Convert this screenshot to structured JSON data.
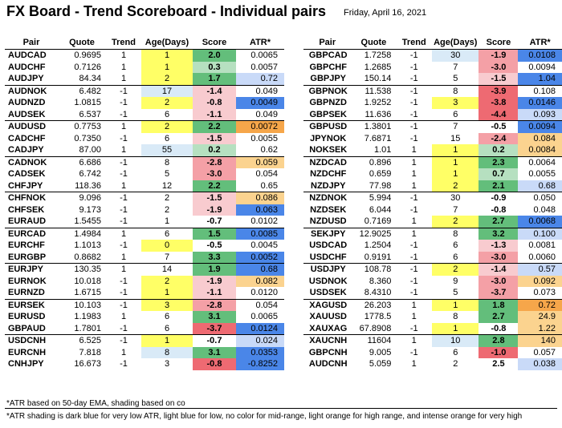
{
  "title": "FX Board - Trend Scoreboard - Individual pairs",
  "date": "Friday, April 16, 2021",
  "headers": [
    "Pair",
    "Quote",
    "Trend",
    "Age(Days)",
    "Score",
    "ATR*"
  ],
  "colors": {
    "age_yellow": "#ffff66",
    "age_lightblue": "#d9eaf7",
    "score_green_strong": "#63be7b",
    "score_green_light": "#b6e0c0",
    "score_red_light": "#f8cbcf",
    "score_red_mid": "#f4a0a6",
    "score_red_strong": "#ee6a72",
    "atr_darkblue": "#4a86e8",
    "atr_lightblue": "#c9daf8",
    "atr_lightorange": "#fbd38f",
    "atr_orange": "#f6a64a"
  },
  "left_rows": [
    [
      "AUDCAD",
      "0.9695",
      "1",
      "1",
      "2.0",
      "0.0065",
      0
    ],
    [
      "AUDCHF",
      "0.7126",
      "1",
      "1",
      "0.3",
      "0.0057",
      0
    ],
    [
      "AUDJPY",
      "84.34",
      "1",
      "2",
      "1.7",
      "0.72",
      0
    ],
    [
      "AUDNOK",
      "6.482",
      "-1",
      "17",
      "-1.4",
      "0.049",
      1
    ],
    [
      "AUDNZD",
      "1.0815",
      "-1",
      "2",
      "-0.8",
      "0.0049",
      0
    ],
    [
      "AUDSEK",
      "6.537",
      "-1",
      "6",
      "-1.1",
      "0.049",
      0
    ],
    [
      "AUDUSD",
      "0.7753",
      "1",
      "2",
      "2.2",
      "0.0072",
      1
    ],
    [
      "CADCHF",
      "0.7350",
      "-1",
      "6",
      "-1.5",
      "0.0055",
      0
    ],
    [
      "CADJPY",
      "87.00",
      "1",
      "55",
      "0.2",
      "0.62",
      0
    ],
    [
      "CADNOK",
      "6.686",
      "-1",
      "8",
      "-2.8",
      "0.059",
      1
    ],
    [
      "CADSEK",
      "6.742",
      "-1",
      "5",
      "-3.0",
      "0.054",
      0
    ],
    [
      "CHFJPY",
      "118.36",
      "1",
      "12",
      "2.2",
      "0.65",
      0
    ],
    [
      "CHFNOK",
      "9.096",
      "-1",
      "2",
      "-1.5",
      "0.086",
      1
    ],
    [
      "CHFSEK",
      "9.173",
      "-1",
      "2",
      "-1.9",
      "0.063",
      0
    ],
    [
      "EURAUD",
      "1.5455",
      "-1",
      "1",
      "-0.7",
      "0.0102",
      0
    ],
    [
      "EURCAD",
      "1.4984",
      "1",
      "6",
      "1.5",
      "0.0085",
      1
    ],
    [
      "EURCHF",
      "1.1013",
      "-1",
      "0",
      "-0.5",
      "0.0045",
      0
    ],
    [
      "EURGBP",
      "0.8682",
      "1",
      "7",
      "3.3",
      "0.0052",
      0
    ],
    [
      "EURJPY",
      "130.35",
      "1",
      "14",
      "1.9",
      "0.68",
      1
    ],
    [
      "EURNOK",
      "10.018",
      "-1",
      "2",
      "-1.9",
      "0.082",
      0
    ],
    [
      "EURNZD",
      "1.6715",
      "-1",
      "1",
      "-1.1",
      "0.0120",
      0
    ],
    [
      "EURSEK",
      "10.103",
      "-1",
      "3",
      "-2.8",
      "0.054",
      1
    ],
    [
      "EURUSD",
      "1.1983",
      "1",
      "6",
      "3.1",
      "0.0065",
      0
    ],
    [
      "GBPAUD",
      "1.7801",
      "-1",
      "6",
      "-3.7",
      "0.0124",
      0
    ],
    [
      "USDCNH",
      "6.525",
      "-1",
      "1",
      "-0.7",
      "0.024",
      1
    ],
    [
      "EURCNH",
      "7.818",
      "1",
      "8",
      "3.1",
      "0.0353",
      0
    ],
    [
      "CNHJPY",
      "16.673",
      "-1",
      "3",
      "-0.8",
      "-0.8252",
      0
    ]
  ],
  "right_rows": [
    [
      "GBPCAD",
      "1.7258",
      "-1",
      "30",
      "-1.9",
      "0.0108",
      0
    ],
    [
      "GBPCHF",
      "1.2685",
      "-1",
      "7",
      "-3.0",
      "0.0094",
      0
    ],
    [
      "GBPJPY",
      "150.14",
      "-1",
      "5",
      "-1.5",
      "1.04",
      0
    ],
    [
      "GBPNOK",
      "11.538",
      "-1",
      "8",
      "-3.9",
      "0.108",
      1
    ],
    [
      "GBPNZD",
      "1.9252",
      "-1",
      "3",
      "-3.8",
      "0.0146",
      0
    ],
    [
      "GBPSEK",
      "11.636",
      "-1",
      "6",
      "-4.4",
      "0.093",
      0
    ],
    [
      "GBPUSD",
      "1.3801",
      "-1",
      "7",
      "-0.5",
      "0.0094",
      1
    ],
    [
      "JPYNOK",
      "7.6871",
      "-1",
      "15",
      "-2.4",
      "0.084",
      0
    ],
    [
      "NOKSEK",
      "1.01",
      "1",
      "1",
      "0.2",
      "0.0084",
      0
    ],
    [
      "NZDCAD",
      "0.896",
      "1",
      "1",
      "2.3",
      "0.0064",
      1
    ],
    [
      "NZDCHF",
      "0.659",
      "1",
      "1",
      "0.7",
      "0.0055",
      0
    ],
    [
      "NZDJPY",
      "77.98",
      "1",
      "2",
      "2.1",
      "0.68",
      0
    ],
    [
      "NZDNOK",
      "5.994",
      "-1",
      "30",
      "-0.9",
      "0.050",
      1
    ],
    [
      "NZDSEK",
      "6.044",
      "-1",
      "7",
      "-0.8",
      "0.048",
      0
    ],
    [
      "NZDUSD",
      "0.7169",
      "1",
      "2",
      "2.7",
      "0.0068",
      0
    ],
    [
      "SEKJPY",
      "12.9025",
      "1",
      "8",
      "3.2",
      "0.100",
      1
    ],
    [
      "USDCAD",
      "1.2504",
      "-1",
      "6",
      "-1.3",
      "0.0081",
      0
    ],
    [
      "USDCHF",
      "0.9191",
      "-1",
      "6",
      "-3.0",
      "0.0060",
      0
    ],
    [
      "USDJPY",
      "108.78",
      "-1",
      "2",
      "-1.4",
      "0.57",
      1
    ],
    [
      "USDNOK",
      "8.360",
      "-1",
      "9",
      "-3.0",
      "0.092",
      0
    ],
    [
      "USDSEK",
      "8.4310",
      "-1",
      "5",
      "-3.7",
      "0.073",
      0
    ],
    [
      "XAGUSD",
      "26.203",
      "1",
      "1",
      "1.8",
      "0.72",
      1
    ],
    [
      "XAUUSD",
      "1778.5",
      "1",
      "8",
      "2.7",
      "24.9",
      0
    ],
    [
      "XAUXAG",
      "67.8908",
      "-1",
      "1",
      "-0.8",
      "1.22",
      0
    ],
    [
      "XAUCNH",
      "11604",
      "1",
      "10",
      "2.8",
      "140",
      1
    ],
    [
      "GBPCNH",
      "9.005",
      "-1",
      "6",
      "-1.0",
      "0.057",
      0
    ],
    [
      "AUDCNH",
      "5.059",
      "1",
      "2",
      "2.5",
      "0.038",
      0
    ]
  ],
  "left_age_bg": [
    "y",
    "y",
    "y",
    "lb",
    "y",
    "",
    "y",
    "",
    "lb",
    "",
    "",
    "",
    "",
    "",
    "",
    "",
    "y",
    "",
    "",
    "y",
    "y",
    "y",
    "",
    "",
    "y",
    "lb",
    ""
  ],
  "left_score_bg": [
    "gs",
    "gl",
    "gs",
    "rl",
    "rl",
    "rl",
    "gs",
    "rl",
    "gl",
    "rm",
    "rm",
    "gs",
    "rl",
    "rl",
    "",
    "gs",
    "",
    "gs",
    "gs",
    "rl",
    "rl",
    "rm",
    "gs",
    "rs",
    "",
    "gs",
    "rs"
  ],
  "left_atr_bg": [
    "",
    "",
    "lb",
    "",
    "db",
    "",
    "o",
    "",
    "",
    "lo",
    "",
    "",
    "lo",
    "db",
    "",
    "db",
    "",
    "db",
    "db",
    "lo",
    "",
    "",
    "",
    "db",
    "lb",
    "db",
    "db"
  ],
  "right_age_bg": [
    "lb",
    "",
    "",
    "",
    "y",
    "",
    "",
    "",
    "y",
    "y",
    "y",
    "y",
    "",
    "",
    "y",
    "",
    "",
    "",
    "y",
    "",
    "",
    "y",
    "",
    "y",
    "lb",
    "",
    ""
  ],
  "right_score_bg": [
    "rm",
    "rm",
    "rl",
    "rs",
    "rs",
    "rs",
    "",
    "rm",
    "gl",
    "gs",
    "gl",
    "gs",
    "",
    "",
    "gs",
    "gs",
    "rl",
    "rm",
    "rl",
    "rm",
    "rm",
    "gs",
    "gs",
    "",
    "gs",
    "rs",
    ""
  ],
  "right_atr_bg": [
    "db",
    "",
    "db",
    "",
    "db",
    "lb",
    "db",
    "lo",
    "lo",
    "",
    "",
    "lb",
    "",
    "",
    "db",
    "lb",
    "",
    "",
    "lb",
    "lo",
    "",
    "o",
    "lo",
    "lo",
    "lo",
    "",
    "lb"
  ],
  "footnote_1": "*ATR based on 50-day EMA, shading based on co",
  "footnote_2": "*ATR shading is dark blue for very low ATR, light blue for low, no color for mid-range, light orange for high range, and intense orange for very high"
}
